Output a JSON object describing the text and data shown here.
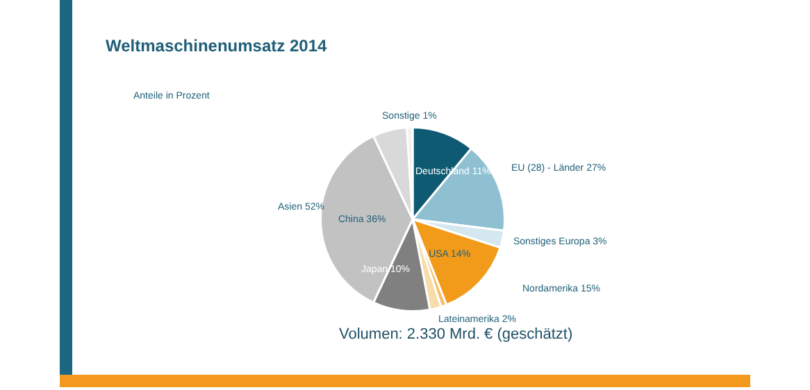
{
  "chart_data": {
    "type": "pie",
    "title": "Weltmaschinenumsatz 2014",
    "categories": [
      "Deutschland 11%",
      null,
      "Sonstiges Europa 3%",
      "USA 14%",
      null,
      "Lateinamerika 2%",
      "Japan 10%",
      "China 36%",
      null,
      "Sonstige 1%"
    ],
    "values": [
      11,
      16,
      3,
      14,
      1,
      2,
      10,
      36,
      6,
      1
    ],
    "colors": [
      "#0e5a73",
      "#8fc0d2",
      "#d5e8ef",
      "#f29a1a",
      "#f5c06a",
      "#f8dcaa",
      "#808080",
      "#c2c2c2",
      "#d9d9d9",
      "#f0f0f0"
    ],
    "legend": false,
    "annotations": [
      "Anteile in Prozent",
      "EU (28) - Länder 27%",
      "Nordamerika 15%",
      "Asien 52%",
      "Volumen: 2.330 Mrd. € (geschätzt)"
    ]
  }
}
